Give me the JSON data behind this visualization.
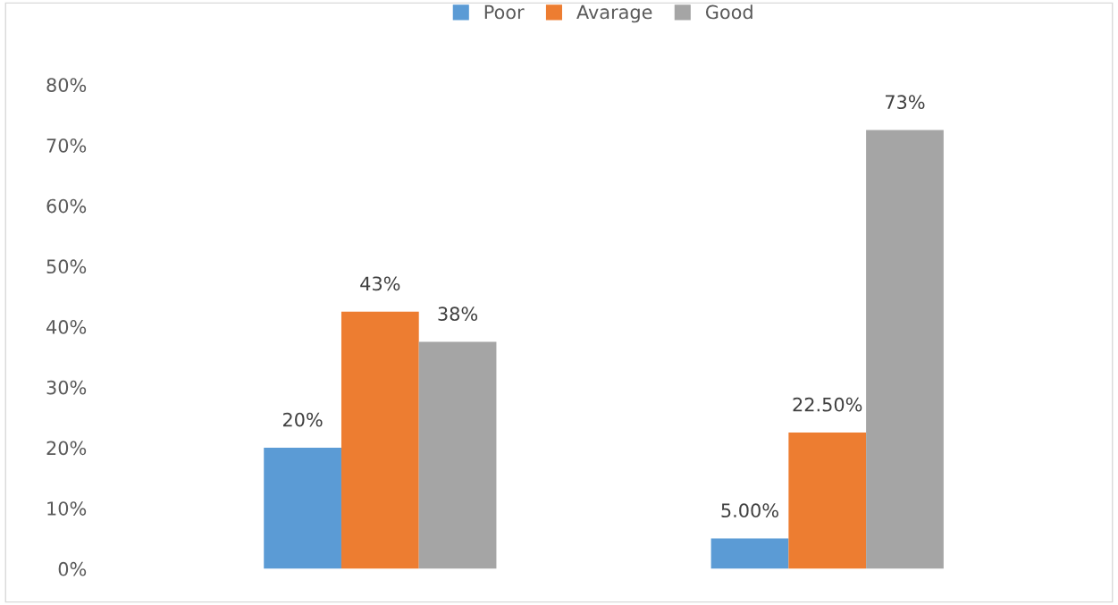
{
  "chart_data": {
    "type": "bar",
    "categories": [
      null,
      null
    ],
    "series": [
      {
        "name": "Poor",
        "color": "#5b9bd5",
        "values": [
          20,
          5
        ],
        "value_labels": [
          "20%",
          "5.00%"
        ]
      },
      {
        "name": "Avarage",
        "color": "#ed7d31",
        "values": [
          42.5,
          22.5
        ],
        "value_labels": [
          "43%",
          "22.50%"
        ]
      },
      {
        "name": "Good",
        "color": "#a5a5a5",
        "values": [
          37.5,
          72.5
        ],
        "value_labels": [
          "38%",
          "73%"
        ]
      }
    ],
    "ylim": [
      0,
      80
    ],
    "yticks": [
      {
        "value": 0,
        "label": "0%"
      },
      {
        "value": 10,
        "label": "10%"
      },
      {
        "value": 20,
        "label": "20%"
      },
      {
        "value": 30,
        "label": "30%"
      },
      {
        "value": 40,
        "label": "40%"
      },
      {
        "value": 50,
        "label": "50%"
      },
      {
        "value": 60,
        "label": "60%"
      },
      {
        "value": 70,
        "label": "70%"
      },
      {
        "value": 80,
        "label": "80%"
      }
    ],
    "legend": "top",
    "grid": false
  }
}
